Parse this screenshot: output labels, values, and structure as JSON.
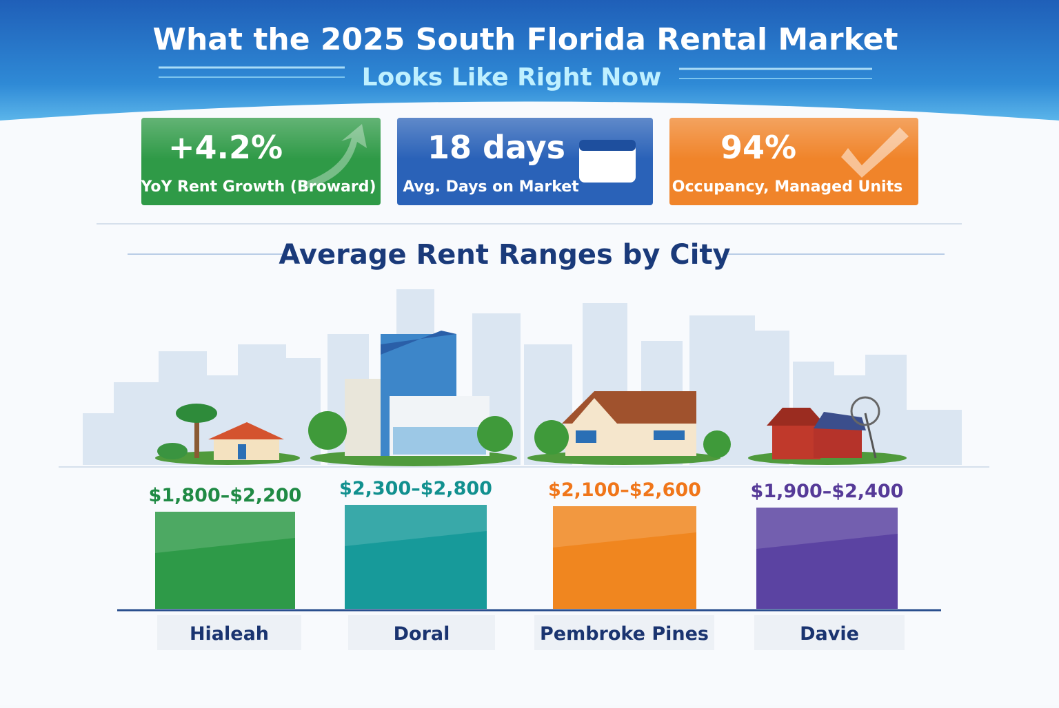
{
  "header": {
    "title": "What the 2025 South Florida Rental Market",
    "subtitle": "Looks Like Right Now"
  },
  "stats": [
    {
      "value": "+4.2%",
      "label": "YoY Rent Growth (Broward)",
      "color": "#2f9a47"
    },
    {
      "value": "18 days",
      "label": "Avg. Days on Market",
      "color": "#2a62b8"
    },
    {
      "value": "94%",
      "label": "Occupancy, Managed Units",
      "color": "#f0842a"
    }
  ],
  "section_title": "Average Rent Ranges by City",
  "cities": [
    {
      "name": "Hialeah",
      "range": "$1,800–$2,200",
      "color": "#2e9a48",
      "label_color": "#1f8a44"
    },
    {
      "name": "Doral",
      "range": "$2,300–$2,800",
      "color": "#179a9a",
      "label_color": "#11908f"
    },
    {
      "name": "Pembroke Pines",
      "range": "$2,100–$2,600",
      "color": "#f0861f",
      "label_color": "#f0761a"
    },
    {
      "name": "Davie",
      "range": "$1,900–$2,400",
      "color": "#5b43a2",
      "label_color": "#563a98"
    }
  ]
}
